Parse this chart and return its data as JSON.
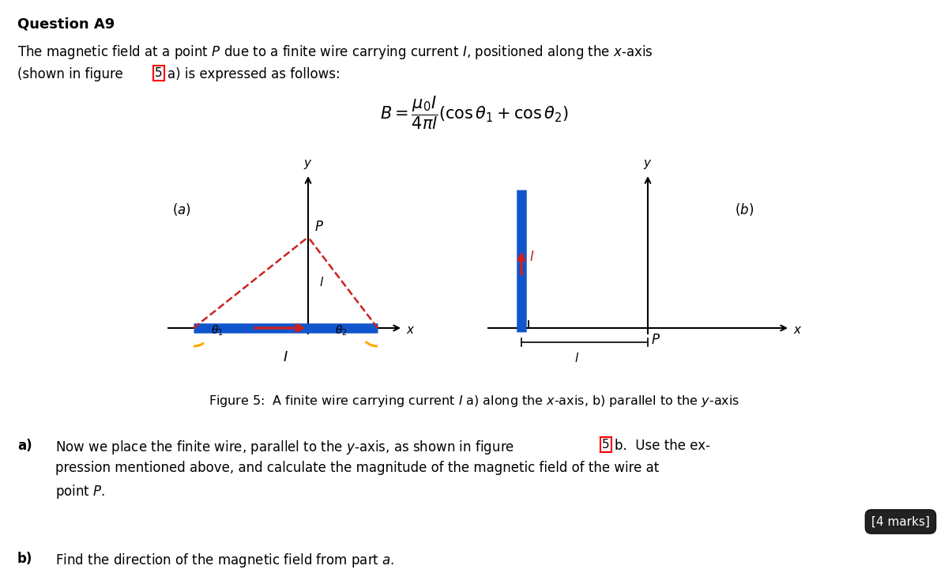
{
  "bg_color": "#ffffff",
  "title": "Question A9",
  "intro_line1": "The magnetic field at a point $P$ due to a finite wire carrying current $I$, positioned along the $x$-axis",
  "intro_line2": "(shown in figure \\fbox{5}a) is expressed as follows:",
  "formula": "$B = \\dfrac{\\mu_0 I}{4\\pi l}(\\cos\\theta_1 + \\cos\\theta_2)$",
  "fig_caption": "Figure 5:  A finite wire carrying current $I$ a) along the $x$-axis, b) parallel to the $y$-axis",
  "qa_label": "a)",
  "qa_text": "Now we place the finite wire, parallel to the $y$-axis, as shown in figure \\fbox{5}b.  Use the ex-\npression mentioned above, and calculate the magnitude of the magnetic field of the wire at\npoint $P$.",
  "qb_label": "b)",
  "qb_text": "Find the direction of the magnetic field from part $a$.",
  "marks_text": "[4 marks]",
  "wire_blue": "#1155cc",
  "wire_red": "#cc2222",
  "yellow": "#ffaa00",
  "dashed_red": "#cc2222",
  "black": "#000000",
  "white": "#ffffff"
}
